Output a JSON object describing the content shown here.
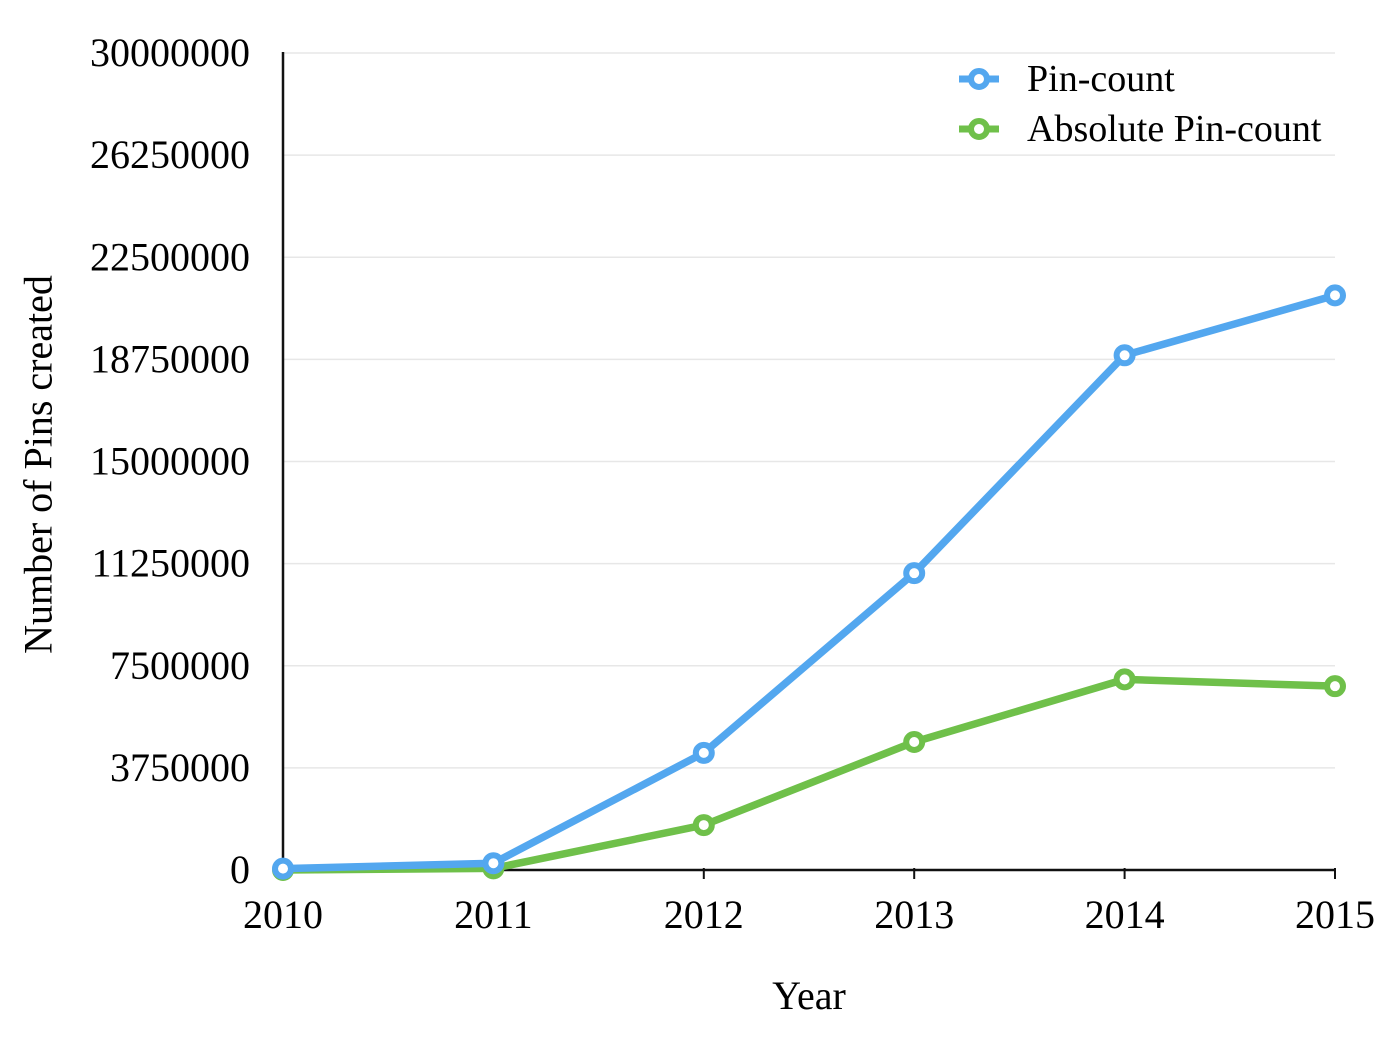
{
  "chart_data": {
    "type": "line",
    "x": [
      "2010",
      "2011",
      "2012",
      "2013",
      "2014",
      "2015"
    ],
    "series": [
      {
        "name": "Pin-count",
        "color": "#53a7ef",
        "values": [
          50000,
          250000,
          4300000,
          10900000,
          18900000,
          21100000
        ]
      },
      {
        "name": "Absolute Pin-count",
        "color": "#6fc04a",
        "values": [
          0,
          60000,
          1650000,
          4700000,
          7000000,
          6750000
        ]
      }
    ],
    "xlabel": "Year",
    "ylabel": "Number of Pins created",
    "ylim": [
      0,
      30000000
    ],
    "yticks": [
      0,
      3750000,
      7500000,
      11250000,
      15000000,
      18750000,
      22500000,
      26250000,
      30000000
    ],
    "grid": true,
    "legend_position": "top-right",
    "marker": "open-circle",
    "grid_color": "#e7e7e7",
    "axis_color": "#111111",
    "text_color": "#000000",
    "background": "#ffffff"
  }
}
